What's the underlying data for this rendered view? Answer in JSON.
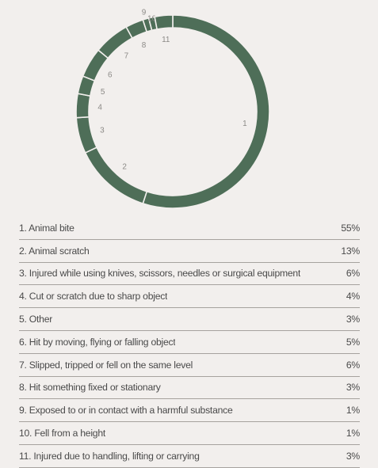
{
  "chart_data": {
    "type": "donut",
    "color": "#4e6e58",
    "slice_labels": [
      "1",
      "2",
      "3",
      "4",
      "5",
      "6",
      "7",
      "8",
      "9",
      "10",
      "11"
    ],
    "categories": [
      "1. Animal bite",
      "2. Animal scratch",
      "3. Injured while using knives, scissors, needles or surgical equipment",
      "4. Cut or scratch due to sharp object",
      "5. Other",
      "6. Hit by moving, flying or falling object",
      "7. Slipped, tripped or fell on the same level",
      "8. Hit something fixed or stationary",
      "9. Exposed to or in contact with a harmful substance",
      "10. Fell from a height",
      "11. Injured due to handling, lifting or carrying"
    ],
    "values": [
      55,
      13,
      6,
      4,
      3,
      5,
      6,
      3,
      1,
      1,
      3
    ],
    "value_labels": [
      "55%",
      "13%",
      "6%",
      "4%",
      "3%",
      "5%",
      "6%",
      "3%",
      "1%",
      "1%",
      "3%"
    ]
  }
}
